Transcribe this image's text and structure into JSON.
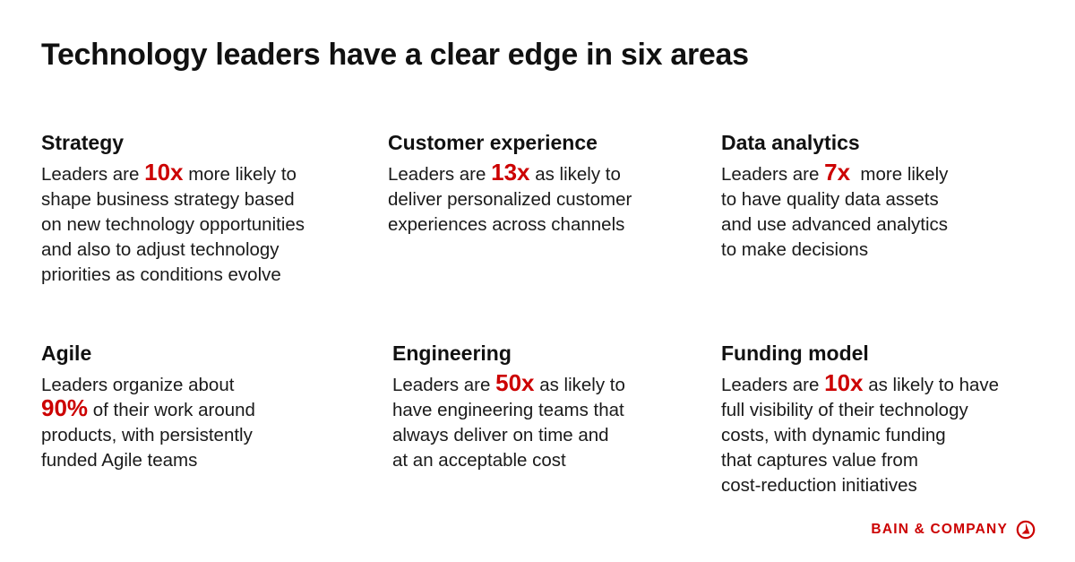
{
  "title": "Technology leaders have a clear edge in six areas",
  "cards": {
    "strategy": {
      "heading": "Strategy",
      "line1_pre": "Leaders are ",
      "line1_highlight": "10x",
      "line1_post": " more likely to",
      "line2": "shape business strategy based",
      "line3": "on new technology opportunities",
      "line4": "and also to adjust technology",
      "line5": "priorities as conditions evolve"
    },
    "customer": {
      "heading": "Customer experience",
      "line1_pre": "Leaders are ",
      "line1_highlight": "13x",
      "line1_post": " as likely to",
      "line2": "deliver personalized customer",
      "line3": "experiences across channels"
    },
    "data": {
      "heading": "Data analytics",
      "line1_pre": "Leaders are ",
      "line1_highlight": "7x",
      "line1_post": "  more likely",
      "line2": "to have quality data assets",
      "line3": "and use advanced analytics",
      "line4": "to make decisions"
    },
    "agile": {
      "heading": "Agile",
      "line1": "Leaders organize about",
      "line2_highlight": "90%",
      "line2_post": " of their work around",
      "line3": "products, with persistently",
      "line4": "funded Agile teams"
    },
    "engineering": {
      "heading": "Engineering",
      "line1_pre": "Leaders are ",
      "line1_highlight": "50x",
      "line1_post": " as likely to",
      "line2": "have engineering teams that",
      "line3": "always deliver on time and",
      "line4": "at an acceptable cost"
    },
    "funding": {
      "heading": "Funding model",
      "line1_pre": "Leaders are ",
      "line1_highlight": "10x",
      "line1_post": " as likely to have",
      "line2": "full visibility of their technology",
      "line3": "costs, with dynamic funding",
      "line4": "that captures value from",
      "line5": "cost-reduction initiatives"
    }
  },
  "brand": {
    "name": "BAIN & COMPANY",
    "icon": "bain-logo-icon"
  },
  "colors": {
    "accent": "#cc0000",
    "text": "#1a1a1a"
  }
}
